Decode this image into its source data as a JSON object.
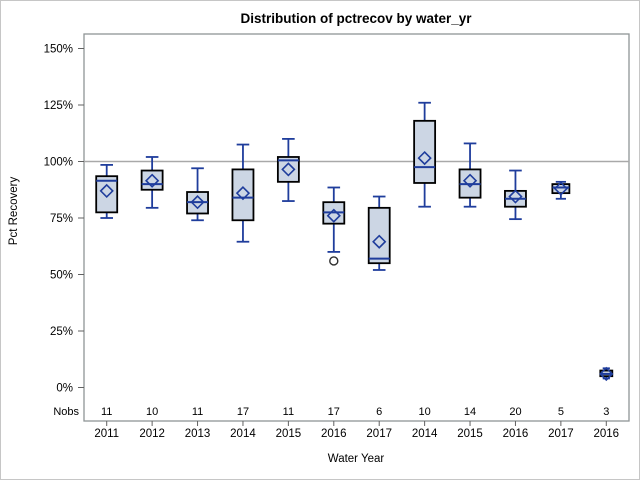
{
  "chart_data": {
    "type": "boxplot",
    "title": "Distribution of pctrecov by water_yr",
    "xlabel": "Water Year",
    "ylabel": "Pct Recovery",
    "nobs_label": "Nobs",
    "y_tick_labels": [
      "0%",
      "25%",
      "50%",
      "75%",
      "100%",
      "125%",
      "150%"
    ],
    "y_tick_values": [
      0,
      25,
      50,
      75,
      100,
      125,
      150
    ],
    "ylim": [
      0,
      150
    ],
    "reference_line": 100,
    "grid": false,
    "legend": false,
    "categories": [
      "2011",
      "2012",
      "2013",
      "2014",
      "2015",
      "2016",
      "2017",
      "2014",
      "2015",
      "2016",
      "2017",
      "2016"
    ],
    "nobs": [
      11,
      10,
      11,
      17,
      11,
      17,
      6,
      10,
      14,
      20,
      5,
      3
    ],
    "boxes": [
      {
        "category": "2011",
        "nobs": 11,
        "whisker_low": 75,
        "q1": 77.5,
        "median": 91.5,
        "q3": 93.5,
        "whisker_high": 98.5,
        "mean": 87,
        "outliers": []
      },
      {
        "category": "2012",
        "nobs": 10,
        "whisker_low": 79.5,
        "q1": 87.5,
        "median": 90,
        "q3": 96,
        "whisker_high": 102,
        "mean": 91.5,
        "outliers": []
      },
      {
        "category": "2013",
        "nobs": 11,
        "whisker_low": 74,
        "q1": 77,
        "median": 82,
        "q3": 86.5,
        "whisker_high": 97,
        "mean": 82,
        "outliers": []
      },
      {
        "category": "2014",
        "nobs": 17,
        "whisker_low": 64.5,
        "q1": 74,
        "median": 84,
        "q3": 96.5,
        "whisker_high": 107.5,
        "mean": 86,
        "outliers": []
      },
      {
        "category": "2015",
        "nobs": 11,
        "whisker_low": 82.5,
        "q1": 91,
        "median": 100.5,
        "q3": 102,
        "whisker_high": 110,
        "mean": 96.5,
        "outliers": []
      },
      {
        "category": "2016",
        "nobs": 17,
        "whisker_low": 60,
        "q1": 72.5,
        "median": 77.5,
        "q3": 82,
        "whisker_high": 88.5,
        "mean": 76,
        "outliers": [
          56
        ]
      },
      {
        "category": "2017",
        "nobs": 6,
        "whisker_low": 52,
        "q1": 55,
        "median": 57,
        "q3": 79.5,
        "whisker_high": 84.5,
        "mean": 64.5,
        "outliers": []
      },
      {
        "category": "2014",
        "nobs": 10,
        "whisker_low": 80,
        "q1": 90.5,
        "median": 97.5,
        "q3": 118,
        "whisker_high": 126,
        "mean": 101.5,
        "outliers": []
      },
      {
        "category": "2015",
        "nobs": 14,
        "whisker_low": 80,
        "q1": 84,
        "median": 90,
        "q3": 96.5,
        "whisker_high": 108,
        "mean": 91.5,
        "outliers": []
      },
      {
        "category": "2016",
        "nobs": 20,
        "whisker_low": 74.5,
        "q1": 80,
        "median": 83.5,
        "q3": 87,
        "whisker_high": 96,
        "mean": 84.5,
        "outliers": []
      },
      {
        "category": "2017",
        "nobs": 5,
        "whisker_low": 83.5,
        "q1": 86,
        "median": 88.5,
        "q3": 90,
        "whisker_high": 91,
        "mean": 88,
        "outliers": []
      },
      {
        "category": "2016",
        "nobs": 3,
        "whisker_low": 4,
        "q1": 5,
        "median": 6,
        "q3": 7.5,
        "whisker_high": 8.5,
        "mean": 6,
        "outliers": []
      }
    ],
    "colors": {
      "box_fill": "#ccd6e4",
      "box_border": "#000000",
      "line_blue": "#1f3d9c",
      "reference_line": "#a9a9a9",
      "frame": "#8f9596",
      "tick": "#616161",
      "outlier": "#2e2e2e",
      "text": "#000000",
      "background": "#ffffff",
      "figure_border": "#c6c6c6"
    }
  }
}
